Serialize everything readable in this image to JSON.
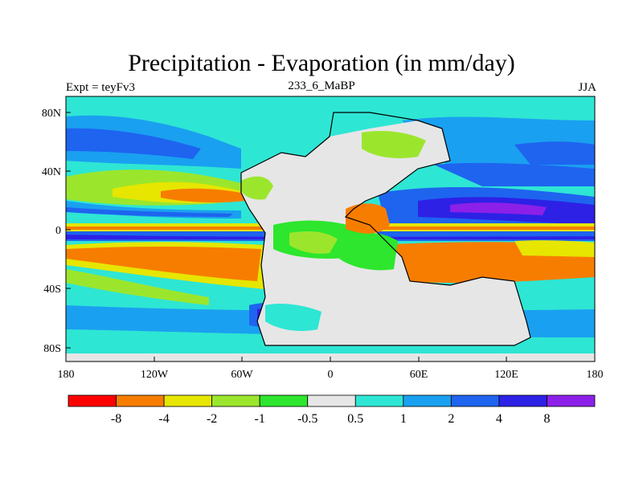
{
  "title": "Precipitation - Evaporation (in mm/day)",
  "subtitle_left": "Expt = teyFv3",
  "subtitle_center": "233_6_MaBP",
  "subtitle_right": "JJA",
  "axes": {
    "x_ticks": [
      "180",
      "120W",
      "60W",
      "0",
      "60E",
      "120E",
      "180"
    ],
    "y_ticks": [
      "80N",
      "40N",
      "0",
      "40S",
      "80S"
    ]
  },
  "colorbar": {
    "colors": [
      "#ff0000",
      "#f77d00",
      "#e6e600",
      "#9be62d",
      "#2de62d",
      "#e6e6e6",
      "#2ee6d4",
      "#1aa0f0",
      "#1e64ef",
      "#2d21e6",
      "#8c20e8"
    ],
    "labels": [
      "-8",
      "-4",
      "-2",
      "-1",
      "-0.5",
      "0.5",
      "1",
      "2",
      "4",
      "8"
    ]
  }
}
